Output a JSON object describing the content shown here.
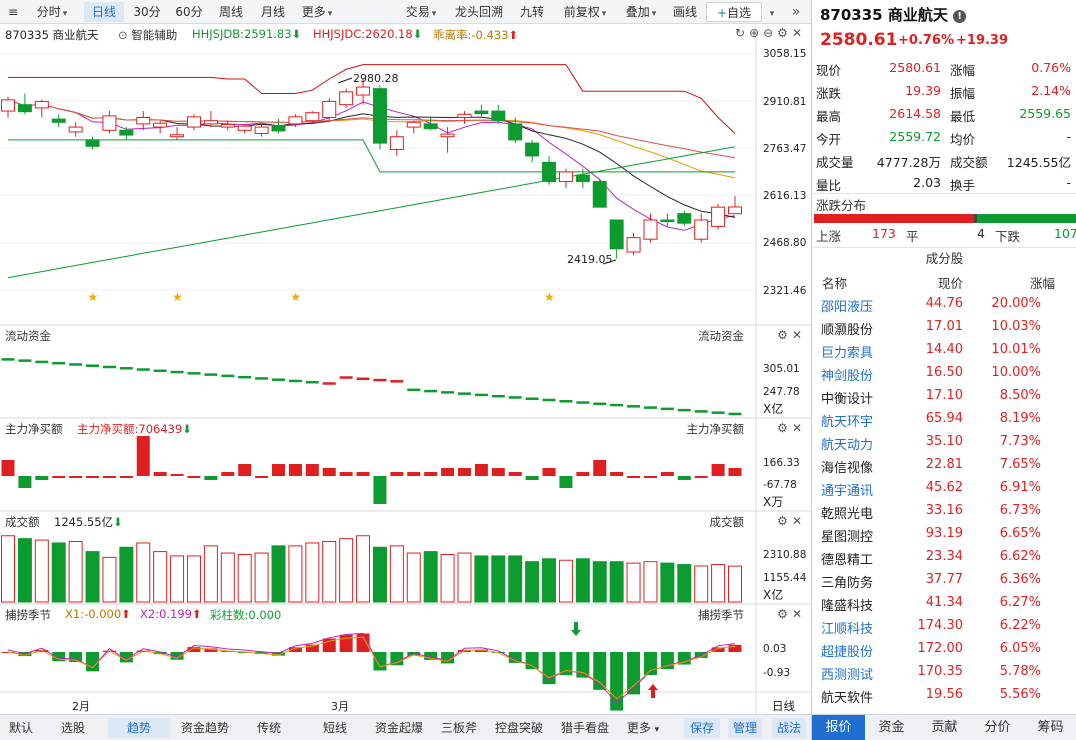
{
  "toolbar": {
    "left": [
      "分时",
      "日线",
      "30分",
      "60分",
      "周线",
      "月线",
      "更多"
    ],
    "right": [
      "交易",
      "龙头回溯",
      "九转",
      "前复权",
      "叠加",
      "画线",
      "自选"
    ]
  },
  "chart": {
    "stock_label": "870335 商业航天",
    "ai_assist": "智能辅助",
    "ind1": "HHJSJDB:2591.83",
    "ind2": "HHJSJDC:2620.18",
    "ind3": "乖离率:-0.433",
    "high_label": "2980.28",
    "low_label": "2419.05",
    "price_ticks": [
      "3058.15",
      "2910.81",
      "2763.47",
      "2616.13",
      "2468.80",
      "2321.46"
    ],
    "pane2": {
      "title": "流动资金",
      "title_r": "流动资金",
      "ticks": [
        "305.01",
        "247.78"
      ],
      "unit": "X亿"
    },
    "pane3": {
      "title": "主力净买额",
      "legend": "主力净买额:706439",
      "title_r": "主力净买额",
      "ticks": [
        "166.33",
        "-67.78"
      ],
      "unit": "X万"
    },
    "pane4": {
      "title": "成交额",
      "legend": "1245.55亿",
      "title_r": "成交额",
      "ticks": [
        "2310.88",
        "1155.44"
      ],
      "unit": "X亿"
    },
    "pane5": {
      "title": "捕捞季节",
      "legend_x1": "X1:-0.000",
      "legend_x2": "X2:0.199",
      "legend_c": "彩柱数:0.000",
      "title_r": "捕捞季节",
      "ticks": [
        "0.03",
        "-0.93"
      ]
    },
    "months": [
      "2月",
      "3月"
    ],
    "period": "日线"
  },
  "chart_data": {
    "type": "candlestick",
    "title": "870335 商业航天",
    "dates_note": "",
    "ohlc": [
      [
        2880,
        2925,
        2860,
        2915
      ],
      [
        2900,
        2935,
        2870,
        2878
      ],
      [
        2890,
        2915,
        2860,
        2910
      ],
      [
        2855,
        2870,
        2830,
        2845
      ],
      [
        2815,
        2845,
        2800,
        2830
      ],
      [
        2790,
        2800,
        2760,
        2770
      ],
      [
        2820,
        2880,
        2810,
        2865
      ],
      [
        2820,
        2830,
        2790,
        2805
      ],
      [
        2840,
        2880,
        2820,
        2860
      ],
      [
        2830,
        2850,
        2810,
        2842
      ],
      [
        2800,
        2830,
        2790,
        2806
      ],
      [
        2830,
        2870,
        2820,
        2862
      ],
      [
        2840,
        2880,
        2830,
        2850
      ],
      [
        2830,
        2850,
        2820,
        2838
      ],
      [
        2820,
        2840,
        2810,
        2833
      ],
      [
        2810,
        2840,
        2800,
        2830
      ],
      [
        2835,
        2855,
        2810,
        2818
      ],
      [
        2840,
        2870,
        2830,
        2862
      ],
      [
        2850,
        2880,
        2840,
        2875
      ],
      [
        2860,
        2920,
        2850,
        2910
      ],
      [
        2900,
        2950,
        2890,
        2940
      ],
      [
        2930,
        2980,
        2900,
        2955
      ],
      [
        2950,
        2960,
        2760,
        2780
      ],
      [
        2760,
        2820,
        2740,
        2800
      ],
      [
        2830,
        2850,
        2810,
        2845
      ],
      [
        2840,
        2860,
        2820,
        2825
      ],
      [
        2800,
        2830,
        2750,
        2808
      ],
      [
        2860,
        2880,
        2840,
        2870
      ],
      [
        2880,
        2900,
        2860,
        2872
      ],
      [
        2880,
        2900,
        2840,
        2850
      ],
      [
        2840,
        2860,
        2780,
        2790
      ],
      [
        2780,
        2790,
        2720,
        2740
      ],
      [
        2720,
        2740,
        2650,
        2660
      ],
      [
        2660,
        2700,
        2640,
        2690
      ],
      [
        2680,
        2700,
        2640,
        2660
      ],
      [
        2660,
        2670,
        2580,
        2580
      ],
      [
        2540,
        2540,
        2419,
        2450
      ],
      [
        2440,
        2500,
        2430,
        2485
      ],
      [
        2480,
        2560,
        2470,
        2540
      ],
      [
        2540,
        2560,
        2520,
        2535
      ],
      [
        2560,
        2570,
        2520,
        2530
      ],
      [
        2480,
        2560,
        2470,
        2540
      ],
      [
        2520,
        2590,
        2510,
        2580
      ],
      [
        2559.72,
        2614.58,
        2559.65,
        2580.61
      ]
    ],
    "price_range": [
      2321.46,
      3058.15
    ],
    "flow_funds_range": [
      247.78,
      305.01
    ],
    "net_buy": [
      40,
      -30,
      -10,
      0,
      0,
      0,
      0,
      0,
      100,
      10,
      5,
      0,
      -10,
      10,
      30,
      0,
      30,
      30,
      30,
      20,
      10,
      10,
      -70,
      10,
      10,
      10,
      20,
      20,
      30,
      20,
      10,
      -10,
      20,
      -30,
      10,
      40,
      10,
      0,
      0,
      10,
      -10,
      0,
      30,
      20
    ],
    "turnover": [
      2300,
      2200,
      2150,
      2050,
      2100,
      1750,
      1550,
      1900,
      2050,
      1750,
      1600,
      1600,
      1950,
      1700,
      1650,
      1700,
      1950,
      1950,
      2050,
      2100,
      2200,
      2300,
      1900,
      1950,
      1700,
      1750,
      1650,
      1700,
      1600,
      1600,
      1600,
      1400,
      1500,
      1450,
      1500,
      1400,
      1400,
      1350,
      1400,
      1350,
      1300,
      1250,
      1300,
      1245.55
    ]
  },
  "quote": {
    "title": "870335 商业航天",
    "price": "2580.61",
    "chg_pct": "+0.76%",
    "chg_abs": "+19.39",
    "rows": [
      [
        "现价",
        "2580.61",
        "涨幅",
        "0.76%"
      ],
      [
        "涨跌",
        "19.39",
        "振幅",
        "2.14%"
      ],
      [
        "最高",
        "2614.58",
        "最低",
        "2559.65"
      ],
      [
        "今开",
        "2559.72",
        "均价",
        "-"
      ],
      [
        "成交量",
        "4777.28万",
        "成交额",
        "1245.55亿"
      ],
      [
        "量比",
        "2.03",
        "换手",
        "-"
      ]
    ],
    "dist_title": "涨跌分布",
    "up_label": "上涨",
    "up": "173",
    "flat_label": "平",
    "flat": "4",
    "down_label": "下跌",
    "down": "107",
    "constituents_title": "成分股",
    "cols": [
      "名称",
      "现价",
      "涨幅"
    ],
    "stocks": [
      [
        "邵阳液压",
        "44.76",
        "20.00%",
        true
      ],
      [
        "顺灏股份",
        "17.01",
        "10.03%",
        false
      ],
      [
        "巨力索具",
        "14.40",
        "10.01%",
        true
      ],
      [
        "神剑股份",
        "16.50",
        "10.00%",
        true
      ],
      [
        "中衡设计",
        "17.10",
        "8.50%",
        false
      ],
      [
        "航天环宇",
        "65.94",
        "8.19%",
        true
      ],
      [
        "航天动力",
        "35.10",
        "7.73%",
        true
      ],
      [
        "海信视像",
        "22.81",
        "7.65%",
        false
      ],
      [
        "通宇通讯",
        "45.62",
        "6.91%",
        true
      ],
      [
        "乾照光电",
        "33.16",
        "6.73%",
        false
      ],
      [
        "星图测控",
        "93.19",
        "6.65%",
        false
      ],
      [
        "德恩精工",
        "23.34",
        "6.62%",
        false
      ],
      [
        "三角防务",
        "37.77",
        "6.36%",
        false
      ],
      [
        "隆盛科技",
        "41.34",
        "6.27%",
        false
      ],
      [
        "江顺科技",
        "174.30",
        "6.22%",
        true
      ],
      [
        "超捷股份",
        "172.00",
        "6.05%",
        true
      ],
      [
        "西测测试",
        "170.35",
        "5.78%",
        true
      ],
      [
        "航天软件",
        "19.56",
        "5.56%",
        false
      ]
    ],
    "tabs": [
      "报价",
      "资金",
      "贡献",
      "分价",
      "筹码"
    ]
  },
  "bottombar": {
    "items": [
      "默认",
      "选股",
      "趋势",
      "资金趋势",
      "传统",
      "短线",
      "资金起爆",
      "三板斧",
      "控盘突破",
      "猎手看盘",
      "更多"
    ],
    "right": [
      "保存",
      "管理",
      "战法"
    ]
  },
  "colors": {
    "up": "#e02020",
    "down": "#0d9b2f",
    "accent": "#1f6fd0"
  }
}
